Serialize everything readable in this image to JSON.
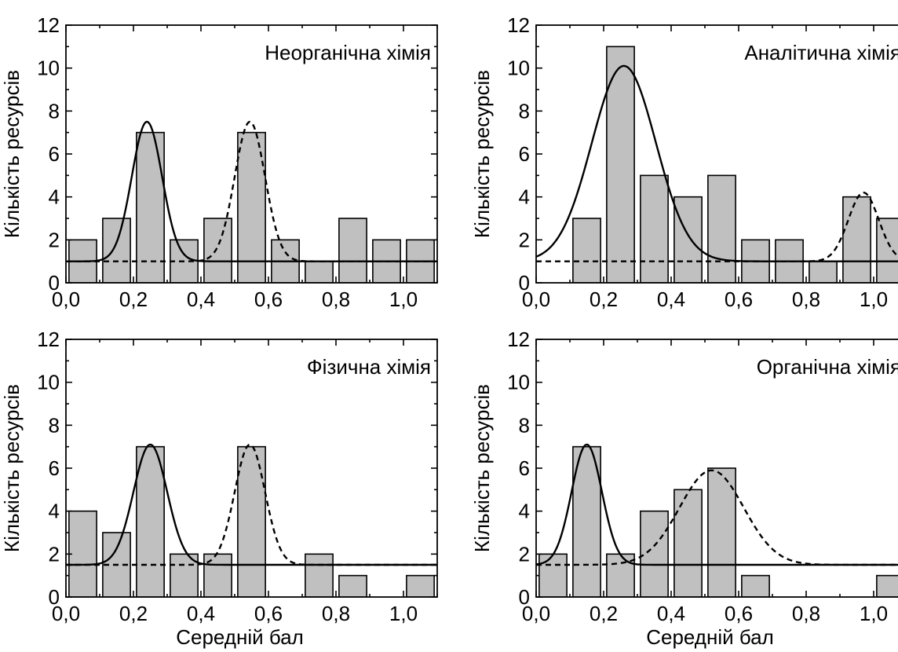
{
  "figure": {
    "x_axis_label": "Середній бал",
    "y_axis_label": "Кількість ресурсів"
  },
  "chart_data": [
    {
      "type": "bar",
      "title": "Неорганічна хімія",
      "xlabel": "",
      "ylabel": "Кількість ресурсів",
      "xlim": [
        0.0,
        1.1
      ],
      "ylim": [
        0,
        12
      ],
      "x_ticks": [
        "0,0",
        "0,2",
        "0,4",
        "0,6",
        "0,8",
        "1,0"
      ],
      "y_ticks": [
        "0",
        "2",
        "4",
        "6",
        "8",
        "10",
        "12"
      ],
      "bins": [
        {
          "x": 0.05,
          "value": 2
        },
        {
          "x": 0.15,
          "value": 3
        },
        {
          "x": 0.25,
          "value": 7
        },
        {
          "x": 0.35,
          "value": 2
        },
        {
          "x": 0.45,
          "value": 3
        },
        {
          "x": 0.55,
          "value": 7
        },
        {
          "x": 0.65,
          "value": 2
        },
        {
          "x": 0.75,
          "value": 1
        },
        {
          "x": 0.85,
          "value": 3
        },
        {
          "x": 0.95,
          "value": 2
        },
        {
          "x": 1.05,
          "value": 2
        }
      ],
      "fits": [
        {
          "style": "solid",
          "baseline": 1.0,
          "amplitude": 6.5,
          "center": 0.24,
          "sigma": 0.045
        },
        {
          "style": "dashed",
          "baseline": 1.0,
          "amplitude": 6.5,
          "center": 0.545,
          "sigma": 0.045
        }
      ]
    },
    {
      "type": "bar",
      "title": "Аналітична хімія",
      "xlabel": "",
      "ylabel": "Кількість ресурсів",
      "xlim": [
        0.0,
        1.1
      ],
      "ylim": [
        0,
        12
      ],
      "x_ticks": [
        "0,0",
        "0,2",
        "0,4",
        "0,6",
        "0,8",
        "1,0"
      ],
      "y_ticks": [
        "0",
        "2",
        "4",
        "6",
        "8",
        "10",
        "12"
      ],
      "bins": [
        {
          "x": 0.15,
          "value": 3
        },
        {
          "x": 0.25,
          "value": 11
        },
        {
          "x": 0.35,
          "value": 5
        },
        {
          "x": 0.45,
          "value": 4
        },
        {
          "x": 0.55,
          "value": 5
        },
        {
          "x": 0.65,
          "value": 2
        },
        {
          "x": 0.75,
          "value": 2
        },
        {
          "x": 0.85,
          "value": 1
        },
        {
          "x": 0.95,
          "value": 4
        },
        {
          "x": 1.05,
          "value": 3
        }
      ],
      "fits": [
        {
          "style": "solid",
          "baseline": 1.0,
          "amplitude": 9.1,
          "center": 0.26,
          "sigma": 0.095
        },
        {
          "style": "dashed",
          "baseline": 1.0,
          "amplitude": 3.2,
          "center": 0.97,
          "sigma": 0.045
        }
      ]
    },
    {
      "type": "bar",
      "title": "Фізична хімія",
      "xlabel": "Середній бал",
      "ylabel": "Кількість ресурсів",
      "xlim": [
        0.0,
        1.1
      ],
      "ylim": [
        0,
        12
      ],
      "x_ticks": [
        "0,0",
        "0,2",
        "0,4",
        "0,6",
        "0,8",
        "1,0"
      ],
      "y_ticks": [
        "0",
        "2",
        "4",
        "6",
        "8",
        "10",
        "12"
      ],
      "bins": [
        {
          "x": 0.05,
          "value": 4
        },
        {
          "x": 0.15,
          "value": 3
        },
        {
          "x": 0.25,
          "value": 7
        },
        {
          "x": 0.35,
          "value": 2
        },
        {
          "x": 0.45,
          "value": 2
        },
        {
          "x": 0.55,
          "value": 7
        },
        {
          "x": 0.75,
          "value": 2
        },
        {
          "x": 0.85,
          "value": 1
        },
        {
          "x": 1.05,
          "value": 1
        }
      ],
      "fits": [
        {
          "style": "solid",
          "baseline": 1.5,
          "amplitude": 5.6,
          "center": 0.25,
          "sigma": 0.05
        },
        {
          "style": "dashed",
          "baseline": 1.5,
          "amplitude": 5.6,
          "center": 0.545,
          "sigma": 0.045
        }
      ]
    },
    {
      "type": "bar",
      "title": "Органічна хімія",
      "xlabel": "Середній бал",
      "ylabel": "Кількість ресурсів",
      "xlim": [
        0.0,
        1.1
      ],
      "ylim": [
        0,
        12
      ],
      "x_ticks": [
        "0,0",
        "0,2",
        "0,4",
        "0,6",
        "0,8",
        "1,0"
      ],
      "y_ticks": [
        "0",
        "2",
        "4",
        "6",
        "8",
        "10",
        "12"
      ],
      "bins": [
        {
          "x": 0.05,
          "value": 2
        },
        {
          "x": 0.15,
          "value": 7
        },
        {
          "x": 0.25,
          "value": 2
        },
        {
          "x": 0.35,
          "value": 4
        },
        {
          "x": 0.45,
          "value": 5
        },
        {
          "x": 0.55,
          "value": 6
        },
        {
          "x": 0.65,
          "value": 1
        },
        {
          "x": 1.05,
          "value": 1
        }
      ],
      "fits": [
        {
          "style": "solid",
          "baseline": 1.5,
          "amplitude": 5.6,
          "center": 0.15,
          "sigma": 0.045
        },
        {
          "style": "dashed",
          "baseline": 1.5,
          "amplitude": 4.4,
          "center": 0.52,
          "sigma": 0.095
        }
      ]
    }
  ]
}
